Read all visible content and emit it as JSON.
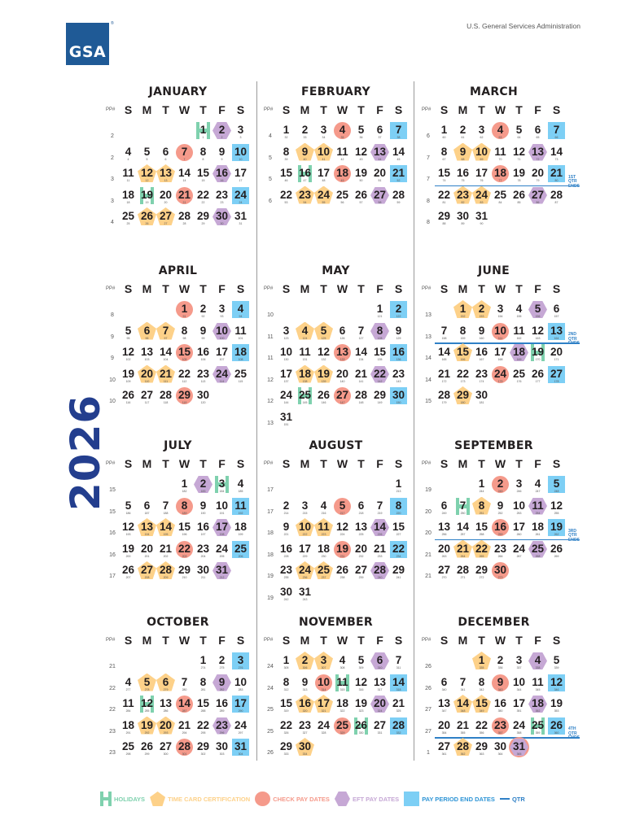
{
  "header": {
    "agency": "U.S. General Services Administration",
    "logo_text": "GSA",
    "logo_mark": "®"
  },
  "year": "2026",
  "pp_label": "PP#",
  "weekdays": [
    "S",
    "M",
    "T",
    "W",
    "T",
    "F",
    "S"
  ],
  "colors": {
    "holiday": "#7fd1ae",
    "timecard": "#fdd189",
    "check": "#f59a8b",
    "eft": "#c6a8d5",
    "payend": "#7dcff5",
    "qtr": "#2f80c6",
    "year": "#233e8e"
  },
  "legend": [
    {
      "key": "holiday",
      "label": "HOLIDAYS",
      "icon": "holiday-h-icon"
    },
    {
      "key": "timecard",
      "label": "TIME CARD CERTIFICATION",
      "icon": "pentagon-icon"
    },
    {
      "key": "check",
      "label": "CHECK PAY DATES",
      "icon": "circle-icon"
    },
    {
      "key": "eft",
      "label": "EFT PAY DATES",
      "icon": "hexagon-icon"
    },
    {
      "key": "payend",
      "label": "PAY PERIOD END DATES",
      "icon": "square-icon"
    },
    {
      "key": "qtr",
      "label": "QTR",
      "icon": "line-icon"
    }
  ],
  "qtr_suffix": "QTR ENDS",
  "months": [
    {
      "name": "JANUARY",
      "pp": [
        2,
        2,
        3,
        3,
        4
      ],
      "holiday": [
        1,
        19
      ],
      "timecard": [
        12,
        13,
        26,
        27
      ],
      "check": [
        7,
        21
      ],
      "eft": [
        2,
        16,
        30
      ],
      "payend": [
        10,
        24
      ]
    },
    {
      "name": "FEBRUARY",
      "pp": [
        4,
        5,
        5,
        6
      ],
      "holiday": [
        16
      ],
      "timecard": [
        9,
        10,
        23,
        24
      ],
      "check": [
        4,
        18
      ],
      "eft": [
        13,
        27
      ],
      "payend": [
        7,
        21
      ]
    },
    {
      "name": "MARCH",
      "pp": [
        6,
        7,
        7,
        8,
        8
      ],
      "holiday": [],
      "timecard": [
        9,
        10,
        23,
        24
      ],
      "check": [
        4,
        18
      ],
      "eft": [
        13,
        27
      ],
      "payend": [
        7,
        21
      ],
      "qtr": {
        "after_row": 2,
        "ordinal": "1ST"
      }
    },
    {
      "name": "APRIL",
      "pp": [
        8,
        9,
        9,
        10,
        10
      ],
      "holiday": [],
      "timecard": [
        6,
        7,
        20,
        21
      ],
      "check": [
        1,
        15,
        29
      ],
      "eft": [
        10,
        24
      ],
      "payend": [
        4,
        18
      ]
    },
    {
      "name": "MAY",
      "pp": [
        10,
        11,
        11,
        12,
        12,
        13
      ],
      "holiday": [
        25
      ],
      "timecard": [
        4,
        5,
        18,
        19
      ],
      "check": [
        13,
        27
      ],
      "eft": [
        8,
        22
      ],
      "payend": [
        2,
        16,
        30
      ]
    },
    {
      "name": "JUNE",
      "pp": [
        13,
        13,
        14,
        14,
        15
      ],
      "holiday": [
        19
      ],
      "timecard": [
        1,
        2,
        15,
        29
      ],
      "check": [
        10,
        24
      ],
      "eft": [
        5,
        18
      ],
      "payend": [
        13,
        27
      ],
      "qtr": {
        "after_row": 1,
        "ordinal": "2ND"
      }
    },
    {
      "name": "JULY",
      "pp": [
        15,
        15,
        16,
        16,
        17
      ],
      "holiday": [
        3
      ],
      "timecard": [
        13,
        14,
        27,
        28
      ],
      "check": [
        8,
        22
      ],
      "eft": [
        2,
        17,
        31
      ],
      "payend": [
        11,
        25
      ]
    },
    {
      "name": "AUGUST",
      "pp": [
        17,
        17,
        18,
        18,
        19,
        19
      ],
      "holiday": [],
      "timecard": [
        10,
        11,
        24,
        25
      ],
      "check": [
        5,
        19
      ],
      "eft": [
        14,
        28
      ],
      "payend": [
        8,
        22
      ]
    },
    {
      "name": "SEPTEMBER",
      "pp": [
        19,
        20,
        20,
        21,
        21
      ],
      "holiday": [
        7
      ],
      "timecard": [
        8,
        21,
        22
      ],
      "check": [
        2,
        16,
        30
      ],
      "eft": [
        11,
        25
      ],
      "payend": [
        5,
        19
      ],
      "qtr": {
        "after_row": 2,
        "ordinal": "3RD"
      }
    },
    {
      "name": "OCTOBER",
      "pp": [
        21,
        22,
        22,
        23,
        23
      ],
      "holiday": [
        12
      ],
      "timecard": [
        5,
        6,
        19,
        20
      ],
      "check": [
        14,
        28
      ],
      "eft": [
        9,
        23
      ],
      "payend": [
        3,
        17,
        31
      ]
    },
    {
      "name": "NOVEMBER",
      "pp": [
        24,
        24,
        25,
        25,
        26
      ],
      "holiday": [
        11,
        26
      ],
      "timecard": [
        2,
        3,
        16,
        17,
        30
      ],
      "check": [
        10,
        25
      ],
      "eft": [
        6,
        20
      ],
      "payend": [
        14,
        28
      ]
    },
    {
      "name": "DECEMBER",
      "pp": [
        26,
        26,
        27,
        27,
        1
      ],
      "holiday": [
        25
      ],
      "timecard": [
        1,
        14,
        15,
        28
      ],
      "check": [
        9,
        23,
        31
      ],
      "eft": [
        4,
        18,
        31
      ],
      "payend": [
        12,
        26
      ],
      "qtr": {
        "after_row": 3,
        "ordinal": "4TH"
      }
    }
  ]
}
